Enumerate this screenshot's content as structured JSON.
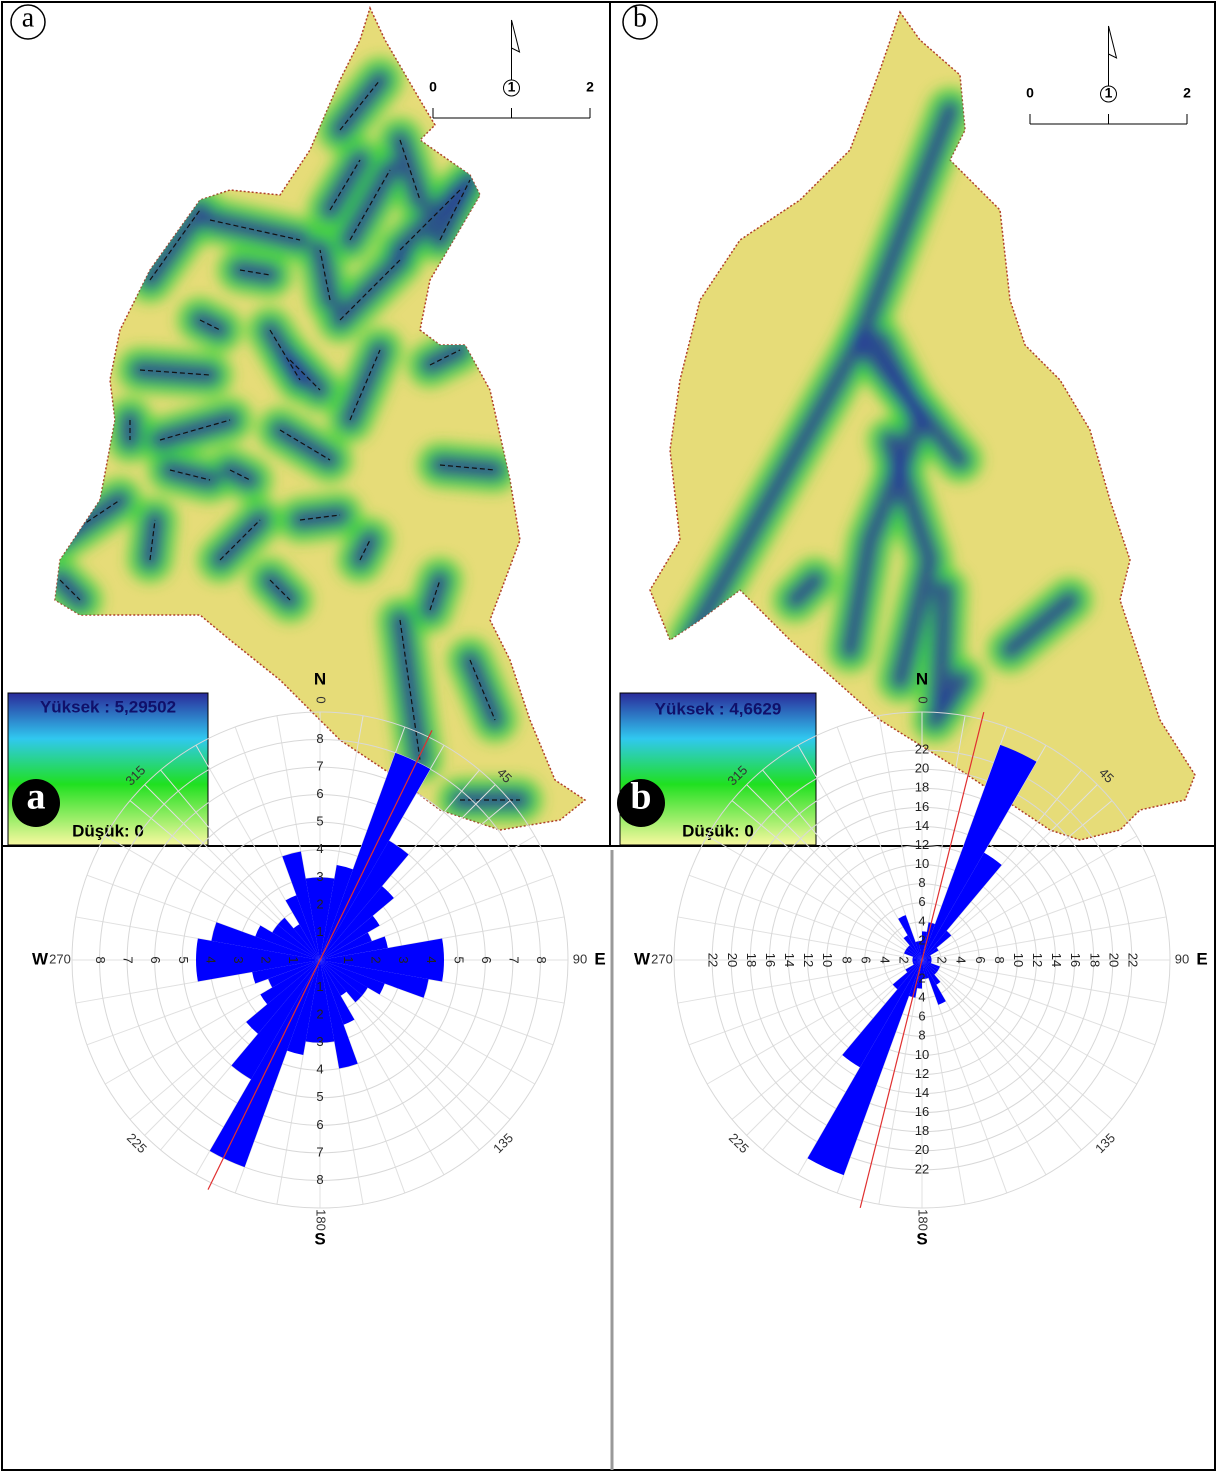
{
  "maps": [
    {
      "label": "a",
      "legend_high": "Yüksek : 5,29502",
      "legend_low": "Düşük: 0",
      "scale_ticks": [
        0,
        1,
        2
      ]
    },
    {
      "label": "b",
      "legend_high": "Yüksek : 4,6629",
      "legend_low": "Düşük: 0",
      "scale_ticks": [
        0,
        1,
        2
      ]
    }
  ],
  "chart_data": [
    {
      "type": "rose",
      "label": "a",
      "bin_width": 10,
      "values": [
        3,
        3.5,
        8,
        5,
        3.5,
        2.5,
        2,
        2.5,
        4.5,
        4.5,
        4,
        2.5,
        2,
        2,
        1.5,
        2.5,
        4,
        3,
        3,
        3.5,
        8,
        5,
        3.5,
        2.5,
        2,
        2.5,
        4.5,
        4.5,
        4,
        2.5,
        2,
        2,
        1.5,
        2.5,
        4,
        3
      ],
      "color": "#0000ff",
      "rlim": [
        0,
        9
      ],
      "rticks": [
        1,
        2,
        3,
        4,
        5,
        6,
        7,
        8
      ],
      "angle_ticks": [
        0,
        45,
        90,
        135,
        180,
        225,
        270,
        315
      ],
      "directions": [
        "N",
        "E",
        "S",
        "W"
      ],
      "mean_direction": 26,
      "mean_color": "#e03030"
    },
    {
      "type": "rose",
      "label": "b",
      "bin_width": 10,
      "values": [
        3,
        4,
        24,
        13,
        4,
        2,
        1,
        1,
        1,
        1,
        1,
        2,
        2,
        2,
        3,
        5,
        2,
        2,
        3,
        4,
        24,
        13,
        4,
        2,
        1,
        1,
        1,
        1,
        1,
        2,
        2,
        2,
        3,
        5,
        2,
        2
      ],
      "color": "#0000ff",
      "rlim": [
        0,
        26
      ],
      "rticks": [
        2,
        4,
        6,
        8,
        10,
        12,
        14,
        16,
        18,
        20,
        22
      ],
      "angle_ticks": [
        0,
        45,
        90,
        135,
        180,
        225,
        270,
        315
      ],
      "directions": [
        "N",
        "E",
        "S",
        "W"
      ],
      "mean_direction": 14,
      "mean_color": "#e03030"
    }
  ]
}
